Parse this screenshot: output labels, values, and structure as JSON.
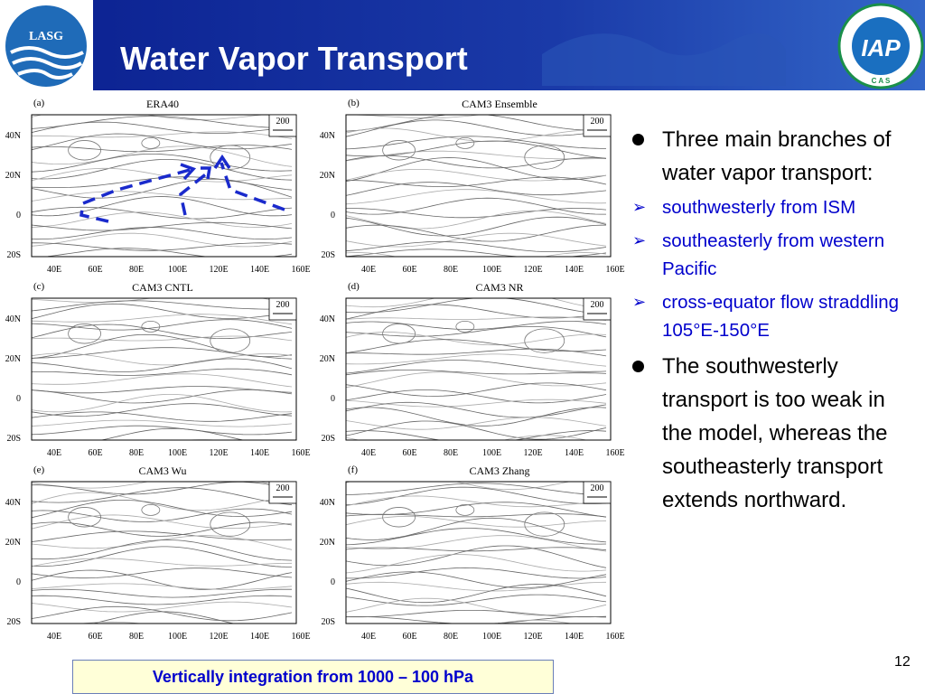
{
  "header": {
    "title": "Water Vapor Transport",
    "logo_left": "LASG",
    "logo_right": "IAP",
    "logo_right_sub": "C A S"
  },
  "figure": {
    "panels": [
      {
        "label": "(a)",
        "title": "ERA40"
      },
      {
        "label": "(b)",
        "title": "CAM3 Ensemble"
      },
      {
        "label": "(c)",
        "title": "CAM3 CNTL"
      },
      {
        "label": "(d)",
        "title": "CAM3 NR"
      },
      {
        "label": "(e)",
        "title": "CAM3 Wu"
      },
      {
        "label": "(f)",
        "title": "CAM3 Zhang"
      }
    ],
    "reference_vector": "200",
    "y_labels": [
      "40N",
      "20N",
      "0",
      "20S"
    ],
    "x_labels": [
      "40E",
      "60E",
      "80E",
      "100E",
      "120E",
      "140E",
      "160E"
    ]
  },
  "bullets": [
    {
      "text": "Three main branches of water vapor transport:",
      "sub": [
        "southwesterly from ISM",
        "southeasterly from western Pacific",
        "cross-equator flow straddling 105°E-150°E"
      ]
    },
    {
      "text": " The southwesterly transport is too weak in the model, whereas the southeasterly transport extends northward.",
      "sub": []
    }
  ],
  "footer": {
    "note": "Vertically integration from 1000 – 100 hPa",
    "page": "12"
  }
}
